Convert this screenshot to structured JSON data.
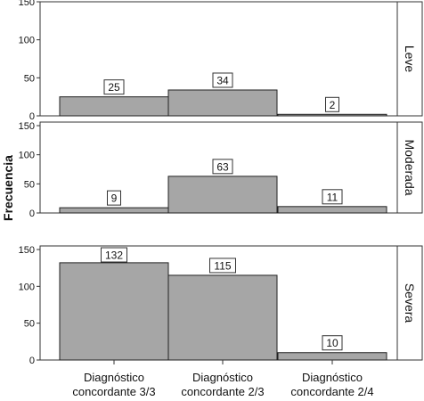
{
  "chart_data": {
    "type": "bar",
    "ylabel": "Frecuencia",
    "categories": [
      "Diagnóstico|concordante 3/3",
      "Diagnóstico|concordante 2/3",
      "Diagnóstico|concordante 2/4"
    ],
    "ylim": [
      0,
      150
    ],
    "yticks": [
      0,
      50,
      100,
      150
    ],
    "grid": false,
    "bar_color": "#a6a6a6",
    "panels": [
      {
        "label": "Leve",
        "values": [
          25,
          34,
          2
        ]
      },
      {
        "label": "Moderada",
        "values": [
          9,
          63,
          11
        ]
      },
      {
        "label": "Severa",
        "values": [
          132,
          115,
          10
        ]
      }
    ]
  }
}
